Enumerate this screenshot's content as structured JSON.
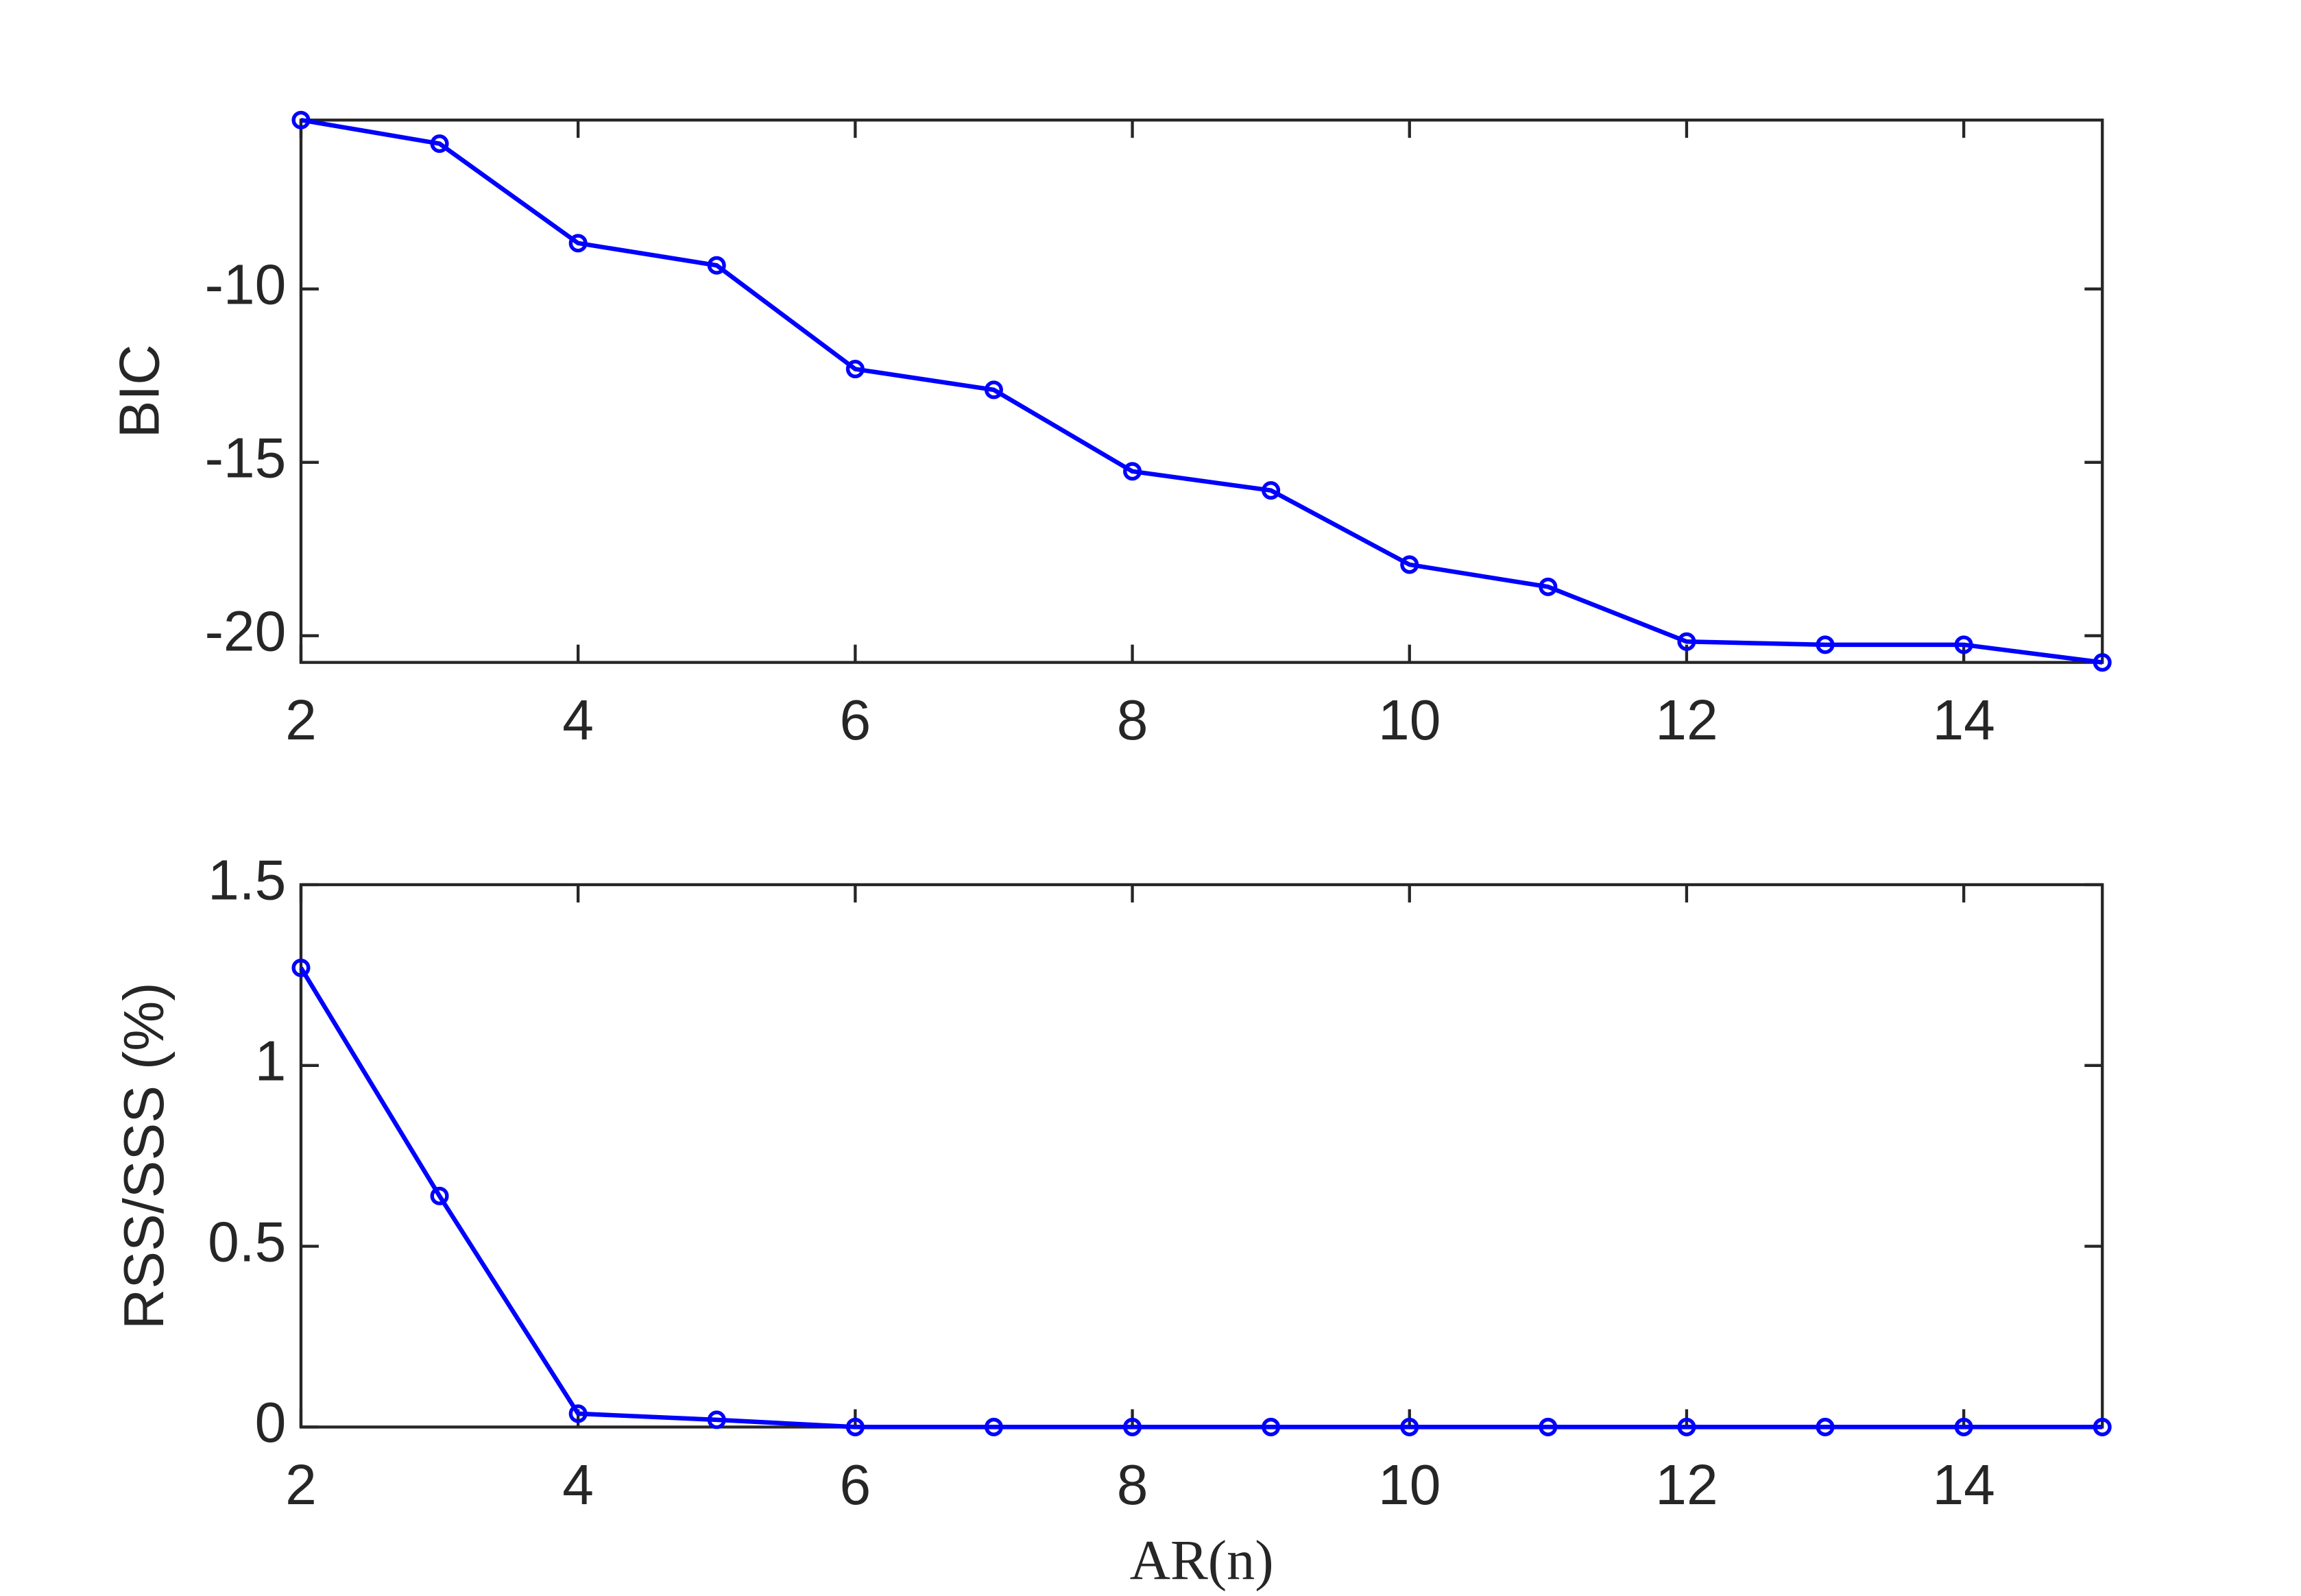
{
  "chart_data": [
    {
      "type": "line",
      "ylabel": "BIC",
      "x": [
        2,
        3,
        4,
        5,
        6,
        7,
        8,
        9,
        10,
        11,
        12,
        13,
        14,
        15
      ],
      "series": [
        {
          "color": "#0000ff",
          "values": [
            -5.13,
            -5.81,
            -8.68,
            -9.32,
            -12.31,
            -12.91,
            -15.26,
            -15.81,
            -17.95,
            -18.59,
            -20.17,
            -20.26,
            -20.26,
            -20.77
          ]
        }
      ],
      "xlim": [
        2,
        15
      ],
      "xticks": [
        2,
        4,
        6,
        8,
        10,
        12,
        14
      ],
      "ylim": [
        -20.77,
        -5.13
      ],
      "yticks": [
        -20,
        -15,
        -10
      ]
    },
    {
      "type": "line",
      "ylabel": "RSS/SSS (%)",
      "xlabel": "AR(n)",
      "x": [
        2,
        3,
        4,
        5,
        6,
        7,
        8,
        9,
        10,
        11,
        12,
        13,
        14,
        15
      ],
      "series": [
        {
          "color": "#0000ff",
          "values": [
            1.27,
            0.639,
            0.037,
            0.02,
            0,
            0,
            0,
            0,
            0,
            0,
            0,
            0,
            0,
            0
          ]
        }
      ],
      "xlim": [
        2,
        15
      ],
      "xticks": [
        2,
        4,
        6,
        8,
        10,
        12,
        14
      ],
      "ylim": [
        0,
        1.5
      ],
      "yticks": [
        0,
        0.5,
        1,
        1.5
      ]
    }
  ]
}
